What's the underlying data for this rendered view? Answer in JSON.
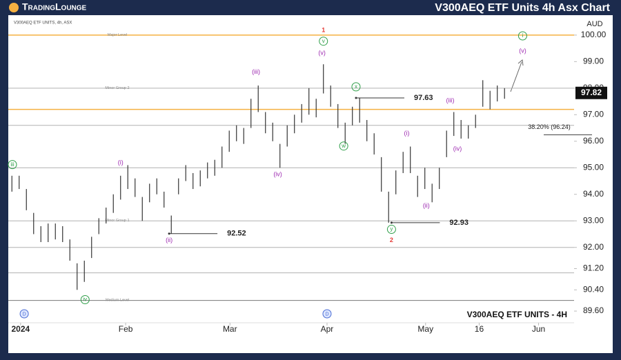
{
  "chart_data": {
    "type": "ohlc",
    "brand": "TradingLounge",
    "title": "V300AEQ ETF Units 4h Asx Chart",
    "symbol_label": "V300AEQ ETF UNITS, 4h, ASX",
    "footer_label": "V300AEQ ETF UNITS - 4H",
    "currency": "AUD",
    "color": "#333333",
    "low": [
      94.1,
      94.2,
      93.4,
      92.5,
      92.2,
      92.2,
      92.3,
      92.2,
      91.5,
      90.4,
      90.7,
      91.6,
      92.5,
      92.9,
      93.3,
      93.8,
      94.2,
      93.9,
      93.0,
      93.7,
      94.0,
      93.5,
      92.52,
      94.0,
      94.5,
      94.2,
      94.3,
      94.6,
      94.7,
      95.0,
      95.6,
      96.0,
      95.9,
      96.5,
      97.1,
      96.3,
      96.0,
      95.0,
      95.8,
      96.3,
      96.7,
      97.0,
      96.9,
      97.8,
      97.3,
      96.5,
      95.9,
      96.6,
      96.7,
      96.0,
      95.5,
      94.1,
      92.93,
      94.0,
      94.8,
      94.8,
      93.9,
      94.2,
      93.7,
      94.2,
      95.4,
      96.2,
      96.1,
      96.1,
      96.5,
      97.3,
      97.2,
      97.5,
      97.6
    ],
    "high": [
      94.7,
      94.7,
      94.2,
      93.3,
      92.8,
      92.9,
      92.9,
      92.8,
      92.3,
      91.4,
      91.5,
      92.4,
      93.1,
      93.5,
      94.0,
      94.7,
      95.1,
      94.6,
      93.9,
      94.4,
      94.6,
      94.1,
      93.2,
      94.6,
      95.1,
      94.8,
      94.9,
      95.2,
      95.3,
      95.8,
      96.4,
      96.6,
      96.5,
      97.6,
      98.1,
      97.1,
      96.7,
      95.9,
      96.6,
      97.0,
      97.4,
      98.0,
      97.6,
      98.9,
      98.1,
      97.4,
      96.7,
      97.3,
      97.63,
      96.8,
      96.3,
      95.4,
      94.1,
      94.9,
      95.6,
      95.8,
      94.7,
      95.0,
      94.4,
      95.0,
      96.4,
      97.1,
      96.8,
      96.6,
      97.0,
      98.3,
      97.9,
      98.1,
      98.0
    ],
    "xlim": [
      -0.5,
      77.6
    ],
    "ylim": [
      89.16,
      100.75
    ],
    "yticks": [
      {
        "value": 100,
        "label": "100.00"
      },
      {
        "value": 99,
        "label": "99.00"
      },
      {
        "value": 98,
        "label": "98.00"
      },
      {
        "value": 97,
        "label": "97.00"
      },
      {
        "value": 96,
        "label": "96.00"
      },
      {
        "value": 95,
        "label": "95.00"
      },
      {
        "value": 94,
        "label": "94.00"
      },
      {
        "value": 93,
        "label": "93.00"
      },
      {
        "value": 92,
        "label": "92.00"
      },
      {
        "value": 91.2,
        "label": "91.20"
      },
      {
        "value": 90.4,
        "label": "90.40"
      },
      {
        "value": 89.6,
        "label": "89.60"
      }
    ],
    "xticks": [
      {
        "value": 1.2,
        "label": "2024"
      },
      {
        "value": 15.7,
        "label": "Feb"
      },
      {
        "value": 30.1,
        "label": "Mar"
      },
      {
        "value": 43.5,
        "label": "Apr"
      },
      {
        "value": 57.1,
        "label": "May"
      },
      {
        "value": 64.5,
        "label": "16"
      },
      {
        "value": 72.7,
        "label": "Jun"
      }
    ],
    "levels": [
      {
        "value": 100,
        "label": "Major Level",
        "color": "#f5b041"
      },
      {
        "value": 97.2,
        "color": "#f5b041"
      },
      {
        "value": 98.0,
        "label": "Minor Group 2",
        "color": "#b0b0b0"
      },
      {
        "value": 96.6,
        "color": "#b0b0b0"
      },
      {
        "value": 95.0,
        "color": "#b0b0b0"
      },
      {
        "value": 93.0,
        "label": "Minor Group 1",
        "color": "#b0b0b0"
      },
      {
        "value": 92.0,
        "color": "#b0b0b0"
      },
      {
        "value": 91.04,
        "color": "#b0b0b0"
      },
      {
        "value": 90.0,
        "label": "Medium Level",
        "color": "#777777"
      }
    ],
    "annotations": [
      {
        "text": "1",
        "x": 43.0,
        "y": 100.18,
        "color": "#e53935"
      },
      {
        "text": "v",
        "x": 43.0,
        "y": 99.77,
        "color": "#2e9e48",
        "circled": true
      },
      {
        "text": "(v)",
        "x": 42.8,
        "y": 99.32,
        "color": "#9c27b0"
      },
      {
        "text": "(iii)",
        "x": 33.7,
        "y": 98.6,
        "color": "#9c27b0"
      },
      {
        "text": "(i)",
        "x": 15.0,
        "y": 95.19,
        "color": "#9c27b0"
      },
      {
        "text": "(ii)",
        "x": 21.7,
        "y": 92.26,
        "color": "#9c27b0"
      },
      {
        "text": "(iv)",
        "x": 36.7,
        "y": 94.75,
        "color": "#9c27b0"
      },
      {
        "text": "x",
        "x": 47.5,
        "y": 98.05,
        "color": "#2e9e48",
        "circled": true
      },
      {
        "text": "w",
        "x": 45.8,
        "y": 95.82,
        "color": "#2e9e48",
        "circled": true
      },
      {
        "text": "y",
        "x": 52.4,
        "y": 92.68,
        "color": "#2e9e48",
        "circled": true
      },
      {
        "text": "2",
        "x": 52.4,
        "y": 92.26,
        "color": "#e53935"
      },
      {
        "text": "(i)",
        "x": 54.5,
        "y": 96.29,
        "color": "#9c27b0"
      },
      {
        "text": "(ii)",
        "x": 57.2,
        "y": 93.56,
        "color": "#9c27b0"
      },
      {
        "text": "(iii)",
        "x": 60.5,
        "y": 97.53,
        "color": "#9c27b0"
      },
      {
        "text": "(iv)",
        "x": 61.5,
        "y": 95.71,
        "color": "#9c27b0"
      },
      {
        "text": "i",
        "x": 70.5,
        "y": 99.97,
        "color": "#2e9e48",
        "circled": true
      },
      {
        "text": "(v)",
        "x": 70.5,
        "y": 99.4,
        "color": "#9c27b0"
      },
      {
        "text": "iv",
        "x": 10.1,
        "y": 90.03,
        "color": "#2e9e48",
        "circled": true
      },
      {
        "text": "iii",
        "x": 0.07,
        "y": 95.12,
        "color": "#2e9e48",
        "circled": true
      }
    ],
    "callouts": [
      {
        "value": 97.63,
        "x": 47.5
      },
      {
        "value": 92.52,
        "x": 21.7
      },
      {
        "value": 92.93,
        "x": 52.4
      }
    ],
    "fib": {
      "label": "38.20% (96.24)",
      "value": 96.24
    },
    "last_price": {
      "value": 97.82
    },
    "event_markers": [
      {
        "label": "D",
        "x": 1.7
      },
      {
        "label": "D",
        "x": 43.5
      }
    ]
  }
}
